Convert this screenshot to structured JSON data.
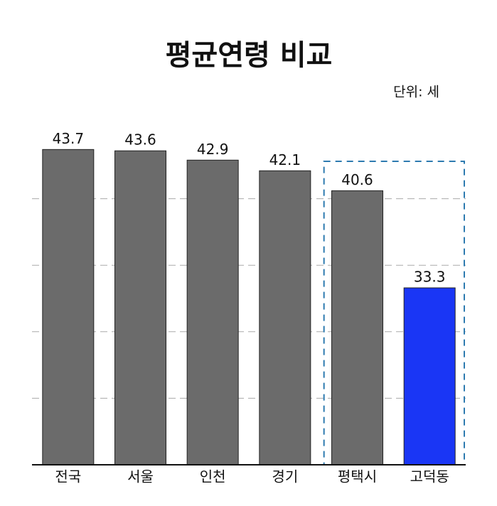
{
  "chart_data": {
    "type": "bar",
    "title": "평균연령 비교",
    "unit_label": "단위: 세",
    "categories": [
      "전국",
      "서울",
      "인천",
      "경기",
      "평택시",
      "고덕동"
    ],
    "values": [
      43.7,
      43.6,
      42.9,
      42.1,
      40.6,
      33.3
    ],
    "colors": [
      "#6b6b6b",
      "#6b6b6b",
      "#6b6b6b",
      "#6b6b6b",
      "#6b6b6b",
      "#1a36f5"
    ],
    "ylim": [
      20,
      45
    ],
    "yticks": [
      25,
      30,
      35,
      40
    ],
    "grid": true
  }
}
